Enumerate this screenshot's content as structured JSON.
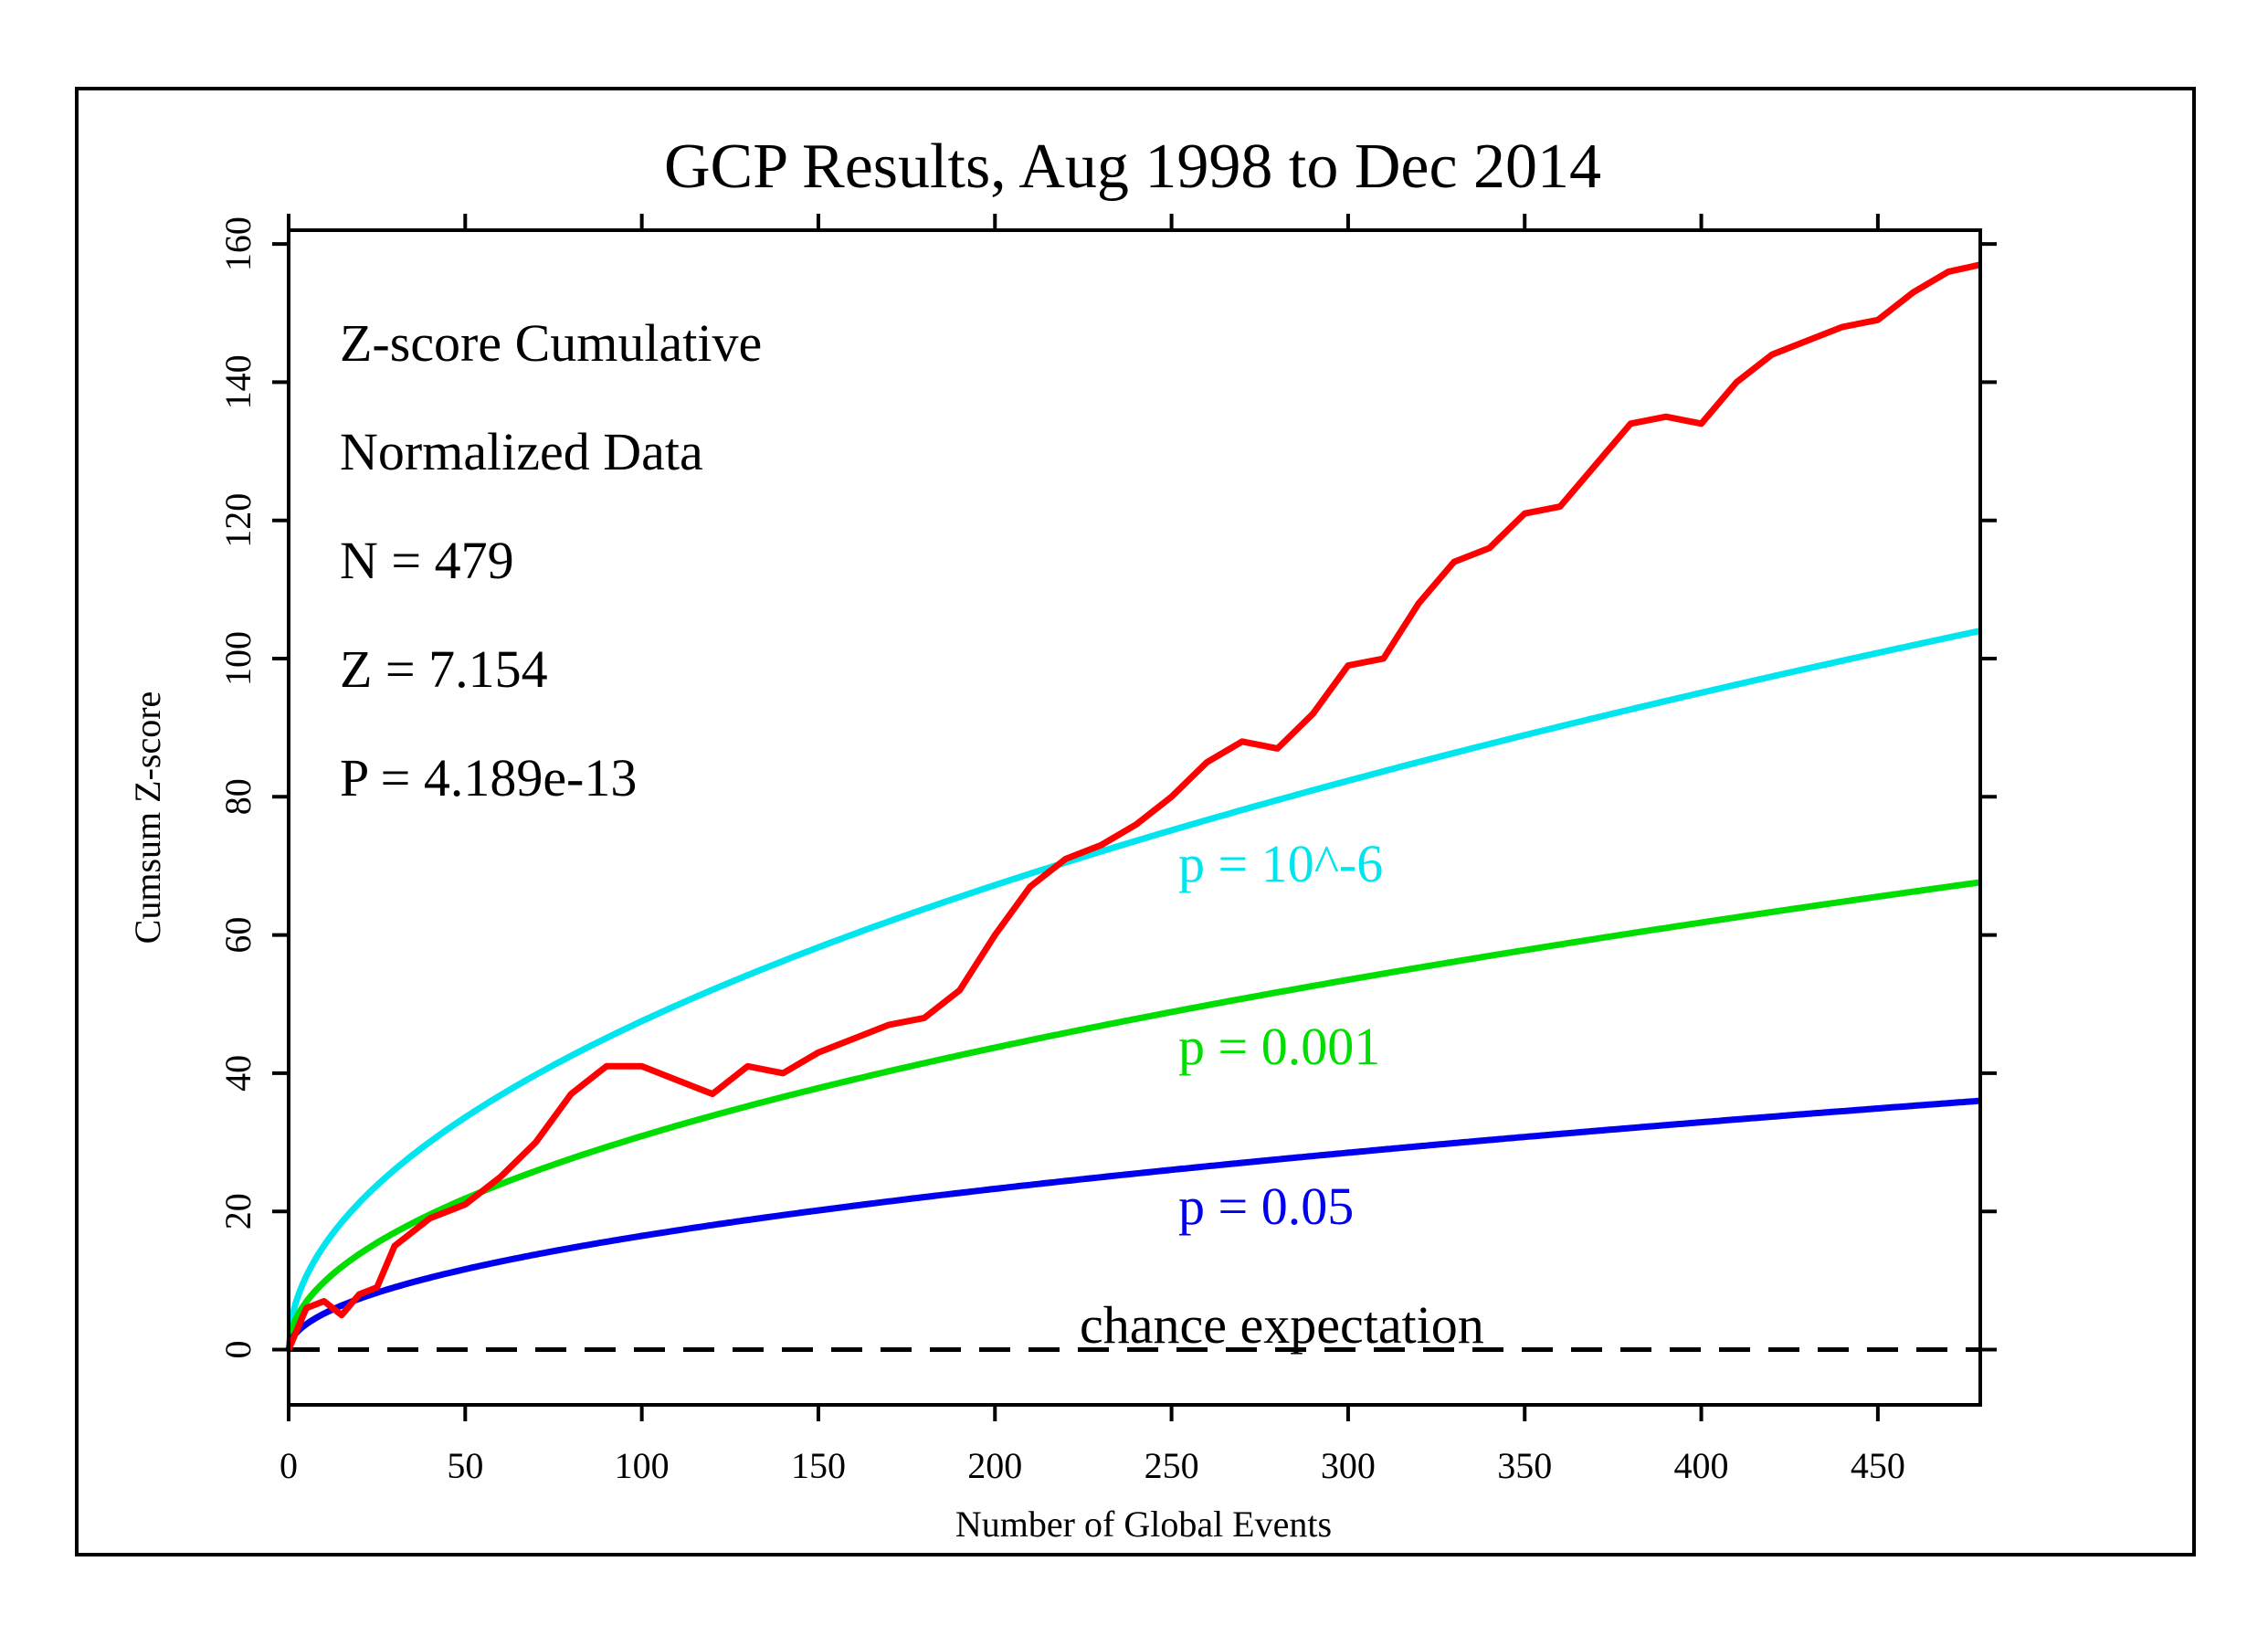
{
  "chart_data": {
    "type": "line",
    "title": "GCP Results, Aug 1998 to Dec 2014",
    "xlabel": "Number of Global Events",
    "ylabel": "Cumsum Z-score",
    "xlim": [
      0,
      479
    ],
    "ylim": [
      -8,
      162
    ],
    "x_ticks": [
      0,
      50,
      100,
      150,
      200,
      250,
      300,
      350,
      400,
      450
    ],
    "y_ticks": [
      0,
      20,
      40,
      60,
      80,
      100,
      120,
      140,
      160
    ],
    "x_tick_labels": [
      "0",
      "50",
      "100",
      "150",
      "200",
      "250",
      "300",
      "350",
      "400",
      "450"
    ],
    "y_tick_labels": [
      "0",
      "20",
      "40",
      "60",
      "80",
      "100",
      "120",
      "140",
      "160"
    ],
    "grid": false,
    "stats": [
      "Z-score Cumulative",
      "Normalized Data",
      "N = 479",
      "Z = 7.154",
      "P = 4.189e-13"
    ],
    "series": [
      {
        "color": "#ff0000",
        "x": [
          0,
          5,
          10,
          15,
          20,
          25,
          30,
          40,
          50,
          60,
          70,
          80,
          90,
          100,
          110,
          120,
          130,
          140,
          150,
          160,
          170,
          180,
          190,
          200,
          210,
          220,
          230,
          240,
          250,
          260,
          270,
          280,
          290,
          300,
          310,
          320,
          330,
          340,
          350,
          360,
          370,
          380,
          390,
          400,
          410,
          420,
          430,
          440,
          450,
          460,
          470,
          479
        ],
        "y": [
          0,
          6,
          7,
          5,
          8,
          9,
          15,
          19,
          21,
          25,
          30,
          37,
          41,
          41,
          39,
          37,
          41,
          40,
          43,
          45,
          47,
          48,
          52,
          60,
          67,
          71,
          73,
          76,
          80,
          85,
          88,
          87,
          92,
          99,
          100,
          108,
          114,
          116,
          121,
          122,
          128,
          134,
          135,
          134,
          140,
          144,
          146,
          148,
          149,
          153,
          156,
          157
        ]
      },
      {
        "name": "p = 10^-6",
        "color": "#00e5ee",
        "func": "4.753*sqrt(x)"
      },
      {
        "name": "p = 0.001",
        "color": "#00dd00",
        "func": "3.09*sqrt(x)"
      },
      {
        "name": "p = 0.05",
        "color": "#0000ee",
        "func": "1.645*sqrt(x)"
      },
      {
        "name": "chance expectation",
        "color": "#000000",
        "dashed": true,
        "func": "0"
      }
    ]
  }
}
